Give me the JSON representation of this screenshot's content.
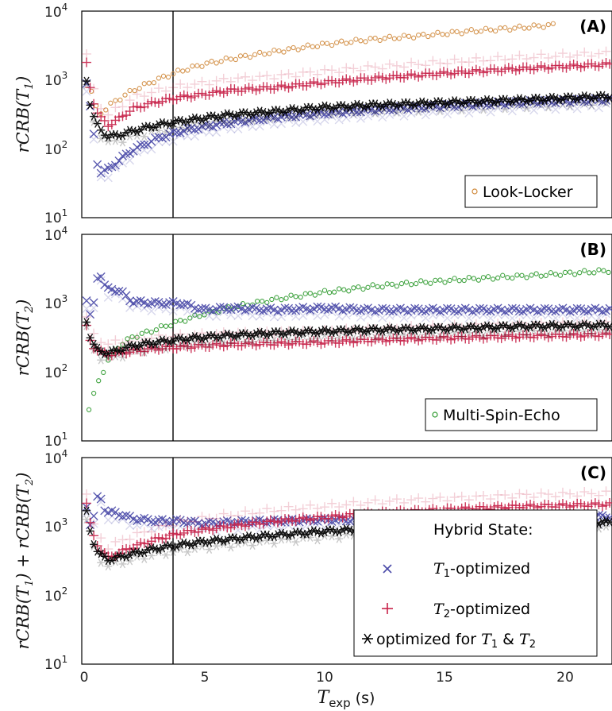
{
  "chart_data": [
    {
      "panel": "(A)",
      "type": "scatter",
      "ylabel": "rCRB(T1)",
      "xlabel": "",
      "yscale": "log",
      "ylim": [
        10,
        10000
      ],
      "xlim": [
        0,
        22
      ],
      "vline_x": 3.8,
      "series": [
        {
          "name": "Look-Locker",
          "marker": "circle",
          "color": "#d08a3c",
          "x": [
            0.3,
            0.6,
            1,
            2,
            3,
            4,
            5,
            6,
            7,
            8,
            10,
            12,
            14,
            16,
            18,
            19.5
          ],
          "y": [
            700,
            300,
            420,
            700,
            1000,
            1350,
            1700,
            2000,
            2300,
            2600,
            3300,
            3900,
            4400,
            5100,
            5700,
            6300
          ]
        },
        {
          "name": "Hybrid State: T1-optimized",
          "marker": "x",
          "color": "#4a4aa8",
          "x": [
            0.1,
            0.3,
            0.6,
            1,
            1.5,
            2,
            3,
            4,
            5,
            6,
            8,
            10,
            12,
            15,
            18,
            22
          ],
          "y": [
            900,
            300,
            45,
            50,
            70,
            95,
            140,
            180,
            210,
            240,
            290,
            330,
            370,
            420,
            470,
            520
          ]
        },
        {
          "name": "Hybrid State: T2-optimized",
          "marker": "plus",
          "color": "#c8234a",
          "x": [
            0.1,
            0.3,
            0.6,
            1,
            1.5,
            2,
            3,
            4,
            5,
            6,
            8,
            10,
            12,
            15,
            18,
            22
          ],
          "y": [
            1700,
            600,
            300,
            220,
            280,
            380,
            480,
            560,
            620,
            700,
            780,
            920,
            1050,
            1250,
            1450,
            1700
          ]
        },
        {
          "name": "Hybrid State: optimized for T1 & T2",
          "marker": "star",
          "color": "#000000",
          "x": [
            0.1,
            0.3,
            0.6,
            1,
            1.5,
            2,
            3,
            4,
            5,
            6,
            8,
            10,
            12,
            15,
            18,
            22
          ],
          "y": [
            1000,
            350,
            200,
            150,
            160,
            180,
            220,
            250,
            280,
            310,
            350,
            400,
            430,
            470,
            510,
            580
          ]
        }
      ]
    },
    {
      "panel": "(B)",
      "type": "scatter",
      "ylabel": "rCRB(T2)",
      "xlabel": "",
      "yscale": "log",
      "ylim": [
        10,
        10000
      ],
      "xlim": [
        0,
        22
      ],
      "vline_x": 3.8,
      "series": [
        {
          "name": "Multi-Spin-Echo",
          "marker": "circle",
          "color": "#2e9a2e",
          "x": [
            0.2,
            0.5,
            1,
            1.5,
            2,
            3,
            4,
            5,
            6,
            8,
            10,
            12,
            14,
            16,
            18,
            20,
            22
          ],
          "y": [
            30,
            60,
            150,
            250,
            320,
            420,
            550,
            700,
            850,
            1150,
            1450,
            1750,
            2000,
            2250,
            2450,
            2700,
            3000
          ]
        },
        {
          "name": "Hybrid State: T1-optimized",
          "marker": "x",
          "color": "#4a4aa8",
          "x": [
            0.1,
            0.3,
            0.6,
            0.9,
            1.2,
            1.5,
            2,
            3,
            4,
            5,
            6,
            8,
            10,
            12,
            15,
            18,
            22
          ],
          "y": [
            1100,
            550,
            3200,
            1600,
            1600,
            1500,
            1050,
            1000,
            1000,
            800,
            850,
            800,
            850,
            800,
            800,
            800,
            800
          ]
        },
        {
          "name": "Hybrid State: T2-optimized",
          "marker": "plus",
          "color": "#c8234a",
          "x": [
            0.1,
            0.3,
            0.6,
            1,
            1.5,
            2,
            3,
            4,
            5,
            6,
            8,
            10,
            12,
            15,
            18,
            22
          ],
          "y": [
            450,
            250,
            200,
            180,
            190,
            200,
            220,
            230,
            240,
            250,
            260,
            270,
            290,
            310,
            330,
            350
          ]
        },
        {
          "name": "Hybrid State: optimized for T1 & T2",
          "marker": "star",
          "color": "#000000",
          "x": [
            0.1,
            0.3,
            0.6,
            1,
            1.5,
            2,
            3,
            4,
            5,
            6,
            8,
            10,
            12,
            15,
            18,
            22
          ],
          "y": [
            550,
            280,
            200,
            190,
            210,
            240,
            270,
            300,
            320,
            340,
            370,
            390,
            410,
            430,
            460,
            480
          ]
        }
      ]
    },
    {
      "panel": "(C)",
      "type": "scatter",
      "ylabel": "rCRB(T1) + rCRB(T2)",
      "xlabel": "T_exp (s)",
      "yscale": "log",
      "ylim": [
        10,
        10000
      ],
      "xlim": [
        0,
        22
      ],
      "xticks": [
        0,
        5,
        10,
        15,
        20
      ],
      "vline_x": 3.8,
      "legend_title": "Hybrid State:",
      "legend_placement": "bottom-right",
      "series": [
        {
          "name": "T1-optimized",
          "marker": "x",
          "color": "#4a4aa8",
          "x": [
            0.1,
            0.3,
            0.6,
            0.9,
            1.2,
            1.5,
            2,
            3,
            4,
            5,
            6,
            8,
            10,
            12,
            15,
            18,
            22
          ],
          "y": [
            2000,
            900,
            3200,
            1600,
            1600,
            1500,
            1300,
            1200,
            1200,
            1100,
            1150,
            1200,
            1250,
            1250,
            1300,
            1350,
            1400
          ]
        },
        {
          "name": "T2-optimized",
          "marker": "plus",
          "color": "#c8234a",
          "x": [
            0.1,
            0.3,
            0.6,
            1,
            1.5,
            2,
            3,
            4,
            5,
            6,
            8,
            10,
            12,
            15,
            18,
            22
          ],
          "y": [
            2200,
            850,
            500,
            350,
            420,
            500,
            650,
            800,
            900,
            1000,
            1200,
            1350,
            1550,
            1750,
            1950,
            2100
          ]
        },
        {
          "name": "optimized for T1 & T2",
          "marker": "star",
          "color": "#000000",
          "x": [
            0.1,
            0.3,
            0.6,
            1,
            1.5,
            2,
            3,
            4,
            5,
            6,
            8,
            10,
            12,
            15,
            18,
            22
          ],
          "y": [
            1600,
            700,
            400,
            330,
            360,
            400,
            480,
            540,
            600,
            650,
            750,
            850,
            920,
            1000,
            1080,
            1150
          ]
        }
      ]
    }
  ],
  "labels": {
    "panel_a": "(A)",
    "panel_b": "(B)",
    "panel_c": "(C)",
    "ylabel_a": "rCRB(T",
    "ylabel_a_sub": "1",
    "ylabel_b": "rCRB(T",
    "ylabel_b_sub": "2",
    "ylabel_c_1": "rCRB(T",
    "ylabel_c_sub1": "1",
    "ylabel_c_mid": ") + rCRB(T",
    "ylabel_c_sub2": "2",
    "close_paren": ")",
    "xlabel_T": "T",
    "xlabel_sub": "exp",
    "xlabel_unit": " (s)",
    "legend_a": "Look-Locker",
    "legend_b": "Multi-Spin-Echo",
    "legend_c_title": "Hybrid State:",
    "legend_c_t1_T": "T",
    "legend_c_t1_sub": "1",
    "legend_c_t1_rest": "-optimized",
    "legend_c_t2_T": "T",
    "legend_c_t2_sub": "2",
    "legend_c_t2_rest": "-optimized",
    "legend_c_both_pre": "optimized for ",
    "legend_c_both_T1": "T",
    "legend_c_both_sub1": "1",
    "legend_c_both_amp": " & ",
    "legend_c_both_T2": "T",
    "legend_c_both_sub2": "2",
    "ytick_base": "10",
    "ytick_exp": [
      "1",
      "2",
      "3",
      "4"
    ],
    "xticks": [
      "0",
      "5",
      "10",
      "15",
      "20"
    ]
  },
  "colors": {
    "t1": "#4a4aa8",
    "t2": "#c8234a",
    "both": "#000000",
    "look_locker": "#d08a3c",
    "mse": "#2e9a2e"
  }
}
